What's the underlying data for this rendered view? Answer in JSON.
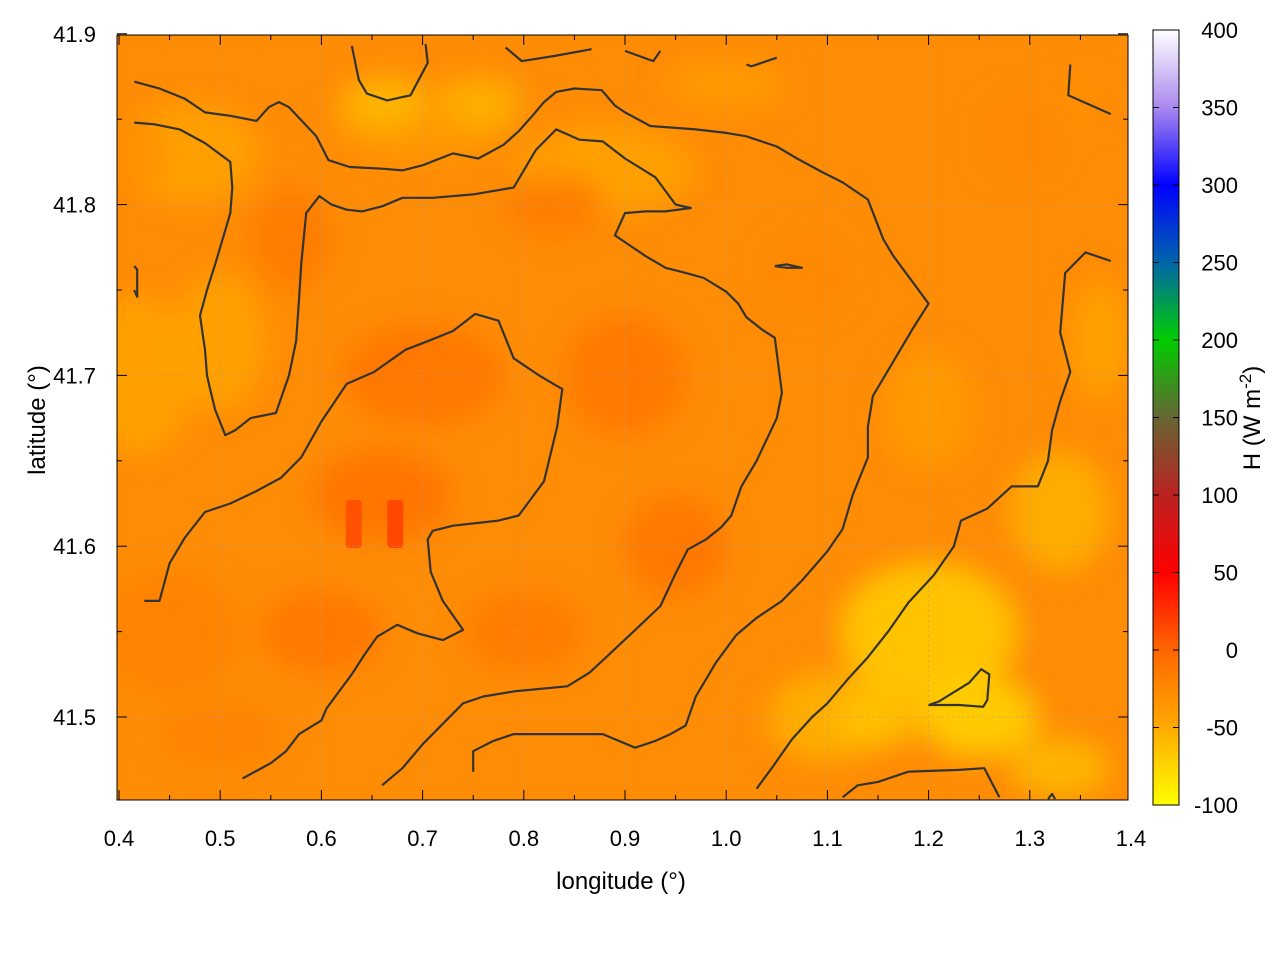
{
  "chart_data": {
    "type": "heatmap",
    "title": "",
    "xlabel": "longitude (°)",
    "ylabel": "latitude (°)",
    "colorbar_label": "H (W m",
    "colorbar_label_sup": "-2",
    "colorbar_label_end": ")",
    "xlim": [
      0.4,
      1.4
    ],
    "ylim": [
      41.45,
      41.9
    ],
    "x_ticks": [
      0.4,
      0.5,
      0.6,
      0.7,
      0.8,
      0.9,
      1.0,
      1.1,
      1.2,
      1.3,
      1.4
    ],
    "x_tick_labels": [
      "0.4",
      "0.5",
      "0.6",
      "0.7",
      "0.8",
      "0.9",
      "1.0",
      "1.1",
      "1.2",
      "1.3",
      "1.4"
    ],
    "y_ticks": [
      41.5,
      41.6,
      41.7,
      41.8,
      41.9
    ],
    "y_tick_labels": [
      "41.5",
      "41.6",
      "41.7",
      "41.8",
      "41.9"
    ],
    "colorbar_range": [
      -100,
      400
    ],
    "colorbar_ticks": [
      -100,
      -50,
      0,
      50,
      100,
      150,
      200,
      250,
      300,
      350,
      400
    ],
    "colorbar_tick_labels": [
      "-100",
      "-50",
      "0",
      "50",
      "100",
      "150",
      "200",
      "250",
      "300",
      "350",
      "400"
    ],
    "colormap_stops": [
      {
        "value": -100,
        "color": "#ffff00"
      },
      {
        "value": -50,
        "color": "#ffaa00"
      },
      {
        "value": 0,
        "color": "#ff6600"
      },
      {
        "value": 50,
        "color": "#ff0000"
      },
      {
        "value": 100,
        "color": "#bb2222"
      },
      {
        "value": 150,
        "color": "#666633"
      },
      {
        "value": 200,
        "color": "#00cc00"
      },
      {
        "value": 250,
        "color": "#0066aa"
      },
      {
        "value": 300,
        "color": "#0000ff"
      },
      {
        "value": 350,
        "color": "#aa88ee"
      },
      {
        "value": 400,
        "color": "#ffffff"
      }
    ],
    "grid": true,
    "field_description": "sensible heat flux H, mostly between -60 and 0 W m-2; warmer (about -10 to 10) in west-central band, cooler (about -70) in southeast",
    "hotspots": [
      {
        "lon": 0.632,
        "lat": 41.613,
        "value": 10
      },
      {
        "lon": 0.673,
        "lat": 41.613,
        "value": 15
      }
    ],
    "contours": [
      {
        "points": [
          [
            0.415,
            41.872
          ],
          [
            0.44,
            41.868
          ],
          [
            0.465,
            41.862
          ],
          [
            0.485,
            41.854
          ],
          [
            0.51,
            41.852
          ],
          [
            0.536,
            41.849
          ],
          [
            0.548,
            41.857
          ],
          [
            0.558,
            41.86
          ],
          [
            0.568,
            41.857
          ],
          [
            0.595,
            41.84
          ],
          [
            0.607,
            41.826
          ],
          [
            0.628,
            41.822
          ],
          [
            0.66,
            41.821
          ],
          [
            0.68,
            41.82
          ],
          [
            0.7,
            41.823
          ],
          [
            0.73,
            41.83
          ],
          [
            0.755,
            41.827
          ],
          [
            0.78,
            41.835
          ],
          [
            0.795,
            41.843
          ],
          [
            0.81,
            41.853
          ],
          [
            0.82,
            41.86
          ],
          [
            0.832,
            41.866
          ],
          [
            0.85,
            41.868
          ],
          [
            0.877,
            41.867
          ],
          [
            0.89,
            41.858
          ],
          [
            0.9,
            41.854
          ],
          [
            0.925,
            41.846
          ],
          [
            0.97,
            41.844
          ],
          [
            1.0,
            41.842
          ],
          [
            1.02,
            41.84
          ],
          [
            1.05,
            41.834
          ],
          [
            1.07,
            41.827
          ],
          [
            1.095,
            41.819
          ],
          [
            1.115,
            41.813
          ],
          [
            1.14,
            41.803
          ],
          [
            1.155,
            41.78
          ],
          [
            1.165,
            41.77
          ],
          [
            1.18,
            41.758
          ],
          [
            1.2,
            41.742
          ],
          [
            1.185,
            41.728
          ],
          [
            1.165,
            41.708
          ],
          [
            1.145,
            41.688
          ],
          [
            1.14,
            41.67
          ],
          [
            1.14,
            41.652
          ],
          [
            1.125,
            41.63
          ],
          [
            1.115,
            41.61
          ],
          [
            1.1,
            41.597
          ],
          [
            1.075,
            41.58
          ],
          [
            1.055,
            41.568
          ],
          [
            1.03,
            41.558
          ],
          [
            1.01,
            41.548
          ],
          [
            0.99,
            41.532
          ],
          [
            0.97,
            41.512
          ],
          [
            0.96,
            41.495
          ],
          [
            0.945,
            41.49
          ],
          [
            0.93,
            41.486
          ],
          [
            0.91,
            41.482
          ],
          [
            0.878,
            41.49
          ],
          [
            0.84,
            41.49
          ],
          [
            0.79,
            41.49
          ],
          [
            0.77,
            41.486
          ],
          [
            0.75,
            41.48
          ],
          [
            0.75,
            41.468
          ]
        ]
      },
      {
        "points": [
          [
            0.415,
            41.848
          ],
          [
            0.435,
            41.847
          ],
          [
            0.46,
            41.844
          ],
          [
            0.485,
            41.836
          ],
          [
            0.51,
            41.825
          ],
          [
            0.512,
            41.81
          ],
          [
            0.51,
            41.795
          ],
          [
            0.505,
            41.785
          ],
          [
            0.495,
            41.765
          ],
          [
            0.487,
            41.75
          ],
          [
            0.48,
            41.735
          ],
          [
            0.485,
            41.715
          ],
          [
            0.487,
            41.7
          ],
          [
            0.49,
            41.692
          ],
          [
            0.495,
            41.68
          ],
          [
            0.505,
            41.665
          ],
          [
            0.515,
            41.668
          ],
          [
            0.53,
            41.675
          ],
          [
            0.555,
            41.678
          ],
          [
            0.568,
            41.7
          ],
          [
            0.575,
            41.72
          ],
          [
            0.578,
            41.745
          ],
          [
            0.58,
            41.765
          ],
          [
            0.585,
            41.795
          ],
          [
            0.598,
            41.805
          ],
          [
            0.61,
            41.8
          ],
          [
            0.625,
            41.797
          ],
          [
            0.64,
            41.796
          ],
          [
            0.66,
            41.799
          ],
          [
            0.68,
            41.804
          ],
          [
            0.71,
            41.804
          ],
          [
            0.75,
            41.806
          ],
          [
            0.79,
            41.81
          ],
          [
            0.812,
            41.832
          ],
          [
            0.832,
            41.844
          ],
          [
            0.855,
            41.838
          ],
          [
            0.878,
            41.837
          ],
          [
            0.9,
            41.827
          ],
          [
            0.93,
            41.816
          ],
          [
            0.95,
            41.8
          ],
          [
            0.965,
            41.798
          ],
          [
            0.94,
            41.796
          ],
          [
            0.92,
            41.796
          ],
          [
            0.9,
            41.795
          ],
          [
            0.89,
            41.782
          ],
          [
            0.905,
            41.776
          ],
          [
            0.92,
            41.77
          ],
          [
            0.94,
            41.763
          ],
          [
            0.96,
            41.76
          ],
          [
            0.978,
            41.757
          ],
          [
            1.0,
            41.749
          ],
          [
            1.012,
            41.742
          ],
          [
            1.02,
            41.734
          ],
          [
            1.035,
            41.727
          ],
          [
            1.048,
            41.722
          ],
          [
            1.055,
            41.69
          ],
          [
            1.05,
            41.675
          ],
          [
            1.042,
            41.665
          ],
          [
            1.03,
            41.65
          ],
          [
            1.015,
            41.635
          ],
          [
            1.005,
            41.618
          ],
          [
            0.995,
            41.611
          ],
          [
            0.98,
            41.604
          ],
          [
            0.962,
            41.598
          ],
          [
            0.95,
            41.584
          ],
          [
            0.935,
            41.565
          ],
          [
            0.912,
            41.552
          ],
          [
            0.885,
            41.537
          ],
          [
            0.865,
            41.526
          ],
          [
            0.843,
            41.518
          ],
          [
            0.79,
            41.515
          ],
          [
            0.76,
            41.512
          ],
          [
            0.74,
            41.508
          ],
          [
            0.72,
            41.496
          ],
          [
            0.7,
            41.484
          ],
          [
            0.68,
            41.47
          ],
          [
            0.66,
            41.46
          ]
        ]
      },
      {
        "points": [
          [
            0.425,
            41.568
          ],
          [
            0.44,
            41.568
          ],
          [
            0.45,
            41.59
          ],
          [
            0.465,
            41.605
          ],
          [
            0.485,
            41.62
          ],
          [
            0.51,
            41.625
          ],
          [
            0.535,
            41.632
          ],
          [
            0.56,
            41.64
          ],
          [
            0.58,
            41.652
          ],
          [
            0.6,
            41.673
          ],
          [
            0.625,
            41.695
          ],
          [
            0.652,
            41.702
          ],
          [
            0.683,
            41.715
          ],
          [
            0.705,
            41.72
          ],
          [
            0.73,
            41.726
          ],
          [
            0.752,
            41.736
          ],
          [
            0.775,
            41.732
          ],
          [
            0.79,
            41.71
          ],
          [
            0.815,
            41.7
          ],
          [
            0.838,
            41.692
          ],
          [
            0.833,
            41.67
          ],
          [
            0.82,
            41.638
          ],
          [
            0.795,
            41.618
          ],
          [
            0.775,
            41.615
          ],
          [
            0.73,
            41.612
          ],
          [
            0.71,
            41.609
          ],
          [
            0.705,
            41.604
          ],
          [
            0.708,
            41.585
          ],
          [
            0.72,
            41.568
          ],
          [
            0.74,
            41.551
          ],
          [
            0.72,
            41.545
          ],
          [
            0.695,
            41.549
          ],
          [
            0.675,
            41.554
          ],
          [
            0.655,
            41.547
          ],
          [
            0.642,
            41.536
          ],
          [
            0.63,
            41.525
          ],
          [
            0.62,
            41.517
          ],
          [
            0.605,
            41.505
          ],
          [
            0.6,
            41.498
          ],
          [
            0.578,
            41.49
          ],
          [
            0.565,
            41.48
          ],
          [
            0.55,
            41.473
          ],
          [
            0.522,
            41.464
          ]
        ]
      },
      {
        "points": [
          [
            0.63,
            41.893
          ],
          [
            0.637,
            41.873
          ],
          [
            0.645,
            41.865
          ],
          [
            0.665,
            41.861
          ],
          [
            0.688,
            41.864
          ],
          [
            0.705,
            41.883
          ],
          [
            0.703,
            41.894
          ]
        ]
      },
      {
        "points": [
          [
            0.782,
            41.892
          ],
          [
            0.798,
            41.884
          ],
          [
            0.83,
            41.887
          ],
          [
            0.867,
            41.891
          ]
        ]
      },
      {
        "points": [
          [
            0.9,
            41.89
          ],
          [
            0.928,
            41.884
          ],
          [
            0.935,
            41.89
          ]
        ]
      },
      {
        "points": [
          [
            1.02,
            41.882
          ],
          [
            1.025,
            41.881
          ],
          [
            1.05,
            41.886
          ]
        ]
      },
      {
        "points": [
          [
            1.34,
            41.882
          ],
          [
            1.338,
            41.864
          ],
          [
            1.38,
            41.853
          ]
        ]
      },
      {
        "points": [
          [
            0.415,
            41.764
          ],
          [
            0.418,
            41.762
          ],
          [
            0.418,
            41.746
          ],
          [
            0.415,
            41.75
          ]
        ]
      },
      {
        "points": [
          [
            1.048,
            41.764
          ],
          [
            1.06,
            41.765
          ],
          [
            1.075,
            41.763
          ],
          [
            1.06,
            41.763
          ],
          [
            1.048,
            41.764
          ]
        ]
      },
      {
        "points": [
          [
            1.38,
            41.767
          ],
          [
            1.355,
            41.772
          ],
          [
            1.335,
            41.76
          ],
          [
            1.33,
            41.725
          ],
          [
            1.34,
            41.702
          ],
          [
            1.33,
            41.685
          ],
          [
            1.322,
            41.668
          ],
          [
            1.318,
            41.65
          ],
          [
            1.308,
            41.635
          ],
          [
            1.282,
            41.635
          ],
          [
            1.258,
            41.622
          ],
          [
            1.232,
            41.615
          ],
          [
            1.225,
            41.6
          ],
          [
            1.205,
            41.583
          ],
          [
            1.18,
            41.567
          ],
          [
            1.16,
            41.55
          ],
          [
            1.14,
            41.535
          ],
          [
            1.12,
            41.522
          ],
          [
            1.1,
            41.508
          ],
          [
            1.085,
            41.5
          ],
          [
            1.065,
            41.487
          ],
          [
            1.045,
            41.47
          ],
          [
            1.03,
            41.458
          ]
        ]
      },
      {
        "points": [
          [
            1.2,
            41.507
          ],
          [
            1.21,
            41.509
          ],
          [
            1.24,
            41.52
          ],
          [
            1.252,
            41.528
          ],
          [
            1.26,
            41.525
          ],
          [
            1.258,
            41.51
          ],
          [
            1.254,
            41.506
          ],
          [
            1.23,
            41.507
          ],
          [
            1.2,
            41.507
          ]
        ]
      },
      {
        "points": [
          [
            1.115,
            41.453
          ],
          [
            1.13,
            41.46
          ],
          [
            1.15,
            41.462
          ],
          [
            1.18,
            41.468
          ],
          [
            1.23,
            41.469
          ],
          [
            1.255,
            41.47
          ],
          [
            1.27,
            41.453
          ]
        ]
      },
      {
        "points": [
          [
            1.318,
            41.452
          ],
          [
            1.322,
            41.455
          ],
          [
            1.325,
            41.452
          ]
        ]
      }
    ]
  }
}
